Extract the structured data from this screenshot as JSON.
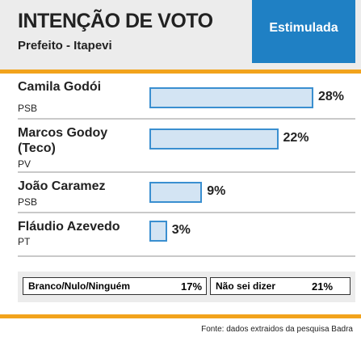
{
  "chart_data": {
    "type": "bar",
    "title": "INTENÇÃO DE VOTO",
    "subtitle": "Prefeito - Itapevi",
    "badge": "Estimulada",
    "categories": [
      "Camila Godói",
      "Marcos Godoy (Teco)",
      "João Caramez",
      "Fláudio Azevedo"
    ],
    "parties": [
      "PSB",
      "PV",
      "PSB",
      "PT"
    ],
    "values": [
      28,
      22,
      9,
      3
    ],
    "value_labels": [
      "28%",
      "22%",
      "9%",
      "3%"
    ],
    "color": "#d3e4f3",
    "others": {
      "categories": [
        "Branco/Nulo/Ninguém",
        "Não sei dizer"
      ],
      "values": [
        17,
        21
      ],
      "value_labels": [
        "17%",
        "21%"
      ]
    },
    "source": "Fonte: dados extraidos da pesquisa Badra"
  }
}
